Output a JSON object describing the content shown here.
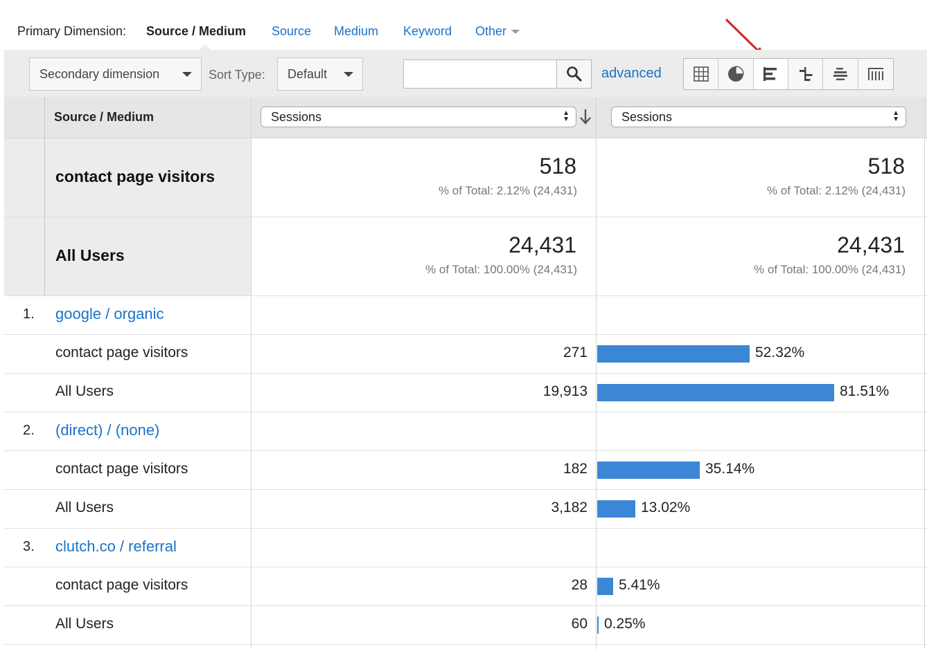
{
  "primary_dimension": {
    "label": "Primary Dimension:",
    "current": "Source / Medium",
    "options": [
      "Source",
      "Medium",
      "Keyword",
      "Other"
    ]
  },
  "toolbar": {
    "secondary_dimension": "Secondary dimension",
    "sort_type_label": "Sort Type:",
    "sort_type_value": "Default",
    "search_value": "",
    "advanced": "advanced",
    "view_icons": [
      "table-view-icon",
      "pie-view-icon",
      "performance-view-icon",
      "comparison-view-icon",
      "term-cloud-view-icon",
      "pivot-view-icon"
    ],
    "active_view": "performance-view-icon"
  },
  "table": {
    "dimension_header": "Source / Medium",
    "metric_left": "Sessions",
    "metric_right": "Sessions",
    "segment_totals": [
      {
        "name": "contact page visitors",
        "value": "518",
        "percent_of_total": "% of Total: 2.12% (24,431)"
      },
      {
        "name": "All Users",
        "value": "24,431",
        "percent_of_total": "% of Total: 100.00% (24,431)"
      }
    ],
    "groups": [
      {
        "rank": "1.",
        "dimension": "google / organic",
        "rows": [
          {
            "segment": "contact page visitors",
            "value": "271",
            "percent": "52.32%",
            "share": 52.32
          },
          {
            "segment": "All Users",
            "value": "19,913",
            "percent": "81.51%",
            "share": 81.51
          }
        ]
      },
      {
        "rank": "2.",
        "dimension": "(direct) / (none)",
        "rows": [
          {
            "segment": "contact page visitors",
            "value": "182",
            "percent": "35.14%",
            "share": 35.14
          },
          {
            "segment": "All Users",
            "value": "3,182",
            "percent": "13.02%",
            "share": 13.02
          }
        ]
      },
      {
        "rank": "3.",
        "dimension": "clutch.co / referral",
        "rows": [
          {
            "segment": "contact page visitors",
            "value": "28",
            "percent": "5.41%",
            "share": 5.41
          },
          {
            "segment": "All Users",
            "value": "60",
            "percent": "0.25%",
            "share": 0.25
          }
        ]
      }
    ]
  },
  "colors": {
    "link": "#1a73c8",
    "bar": "#3b86d5",
    "annotation_arrow": "#c62828"
  }
}
